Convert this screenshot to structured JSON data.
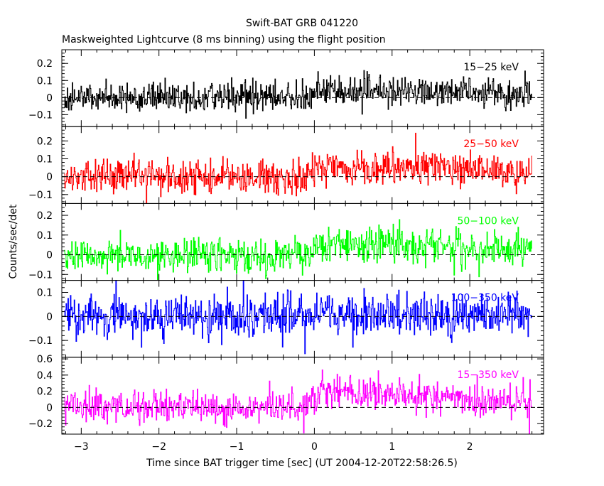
{
  "chart_data": {
    "type": "line",
    "title": "Swift-BAT GRB 041220",
    "subtitle": "Maskweighted Lightcurve (8 ms binning) using the flight position",
    "xlabel": "Time since BAT trigger time [sec] (UT 2004-12-20T22:58:26.5)",
    "ylabel": "Counts/sec/det",
    "xlim": [
      -3.25,
      2.95
    ],
    "x_ticks": [
      -3,
      -2,
      -1,
      0,
      1,
      2
    ],
    "x_tick_labels": [
      "−3",
      "−2",
      "−1",
      "0",
      "1",
      "2"
    ],
    "bin_width_sec": 0.008,
    "data_x_range": [
      -3.22,
      2.8
    ],
    "panels": [
      {
        "name": "15-25 keV",
        "label": "15−25 keV",
        "color": "#000000",
        "ylim": [
          -0.17,
          0.28
        ],
        "y_ticks": [
          -0.1,
          0,
          0.1,
          0.2
        ],
        "y_tick_labels": [
          "−0.1",
          "0",
          "0.1",
          "0.2"
        ],
        "baseline_level": 0.0,
        "burst_level": 0.05,
        "noise_sigma": 0.045
      },
      {
        "name": "25-50 keV",
        "label": "25−50 keV",
        "color": "#ff0000",
        "ylim": [
          -0.15,
          0.28
        ],
        "y_ticks": [
          -0.1,
          0,
          0.1,
          0.2
        ],
        "y_tick_labels": [
          "−0.1",
          "0",
          "0.1",
          "0.2"
        ],
        "baseline_level": 0.0,
        "burst_level": 0.07,
        "noise_sigma": 0.05
      },
      {
        "name": "50-100 keV",
        "label": "50−100 keV",
        "color": "#00ff00",
        "ylim": [
          -0.13,
          0.26
        ],
        "y_ticks": [
          -0.1,
          0,
          0.1,
          0.2
        ],
        "y_tick_labels": [
          "−0.1",
          "0",
          "0.1",
          "0.2"
        ],
        "baseline_level": 0.0,
        "burst_level": 0.06,
        "noise_sigma": 0.045
      },
      {
        "name": "100-350 keV",
        "label": "100−350 keV",
        "color": "#0000ff",
        "ylim": [
          -0.17,
          0.15
        ],
        "y_ticks": [
          -0.1,
          0,
          0.1
        ],
        "y_tick_labels": [
          "−0.1",
          "0",
          "0.1"
        ],
        "baseline_level": 0.0,
        "burst_level": 0.01,
        "noise_sigma": 0.045
      },
      {
        "name": "15-350 keV",
        "label": "15−350 keV",
        "color": "#ff00ff",
        "ylim": [
          -0.33,
          0.62
        ],
        "y_ticks": [
          -0.2,
          0,
          0.2,
          0.4,
          0.6
        ],
        "y_tick_labels": [
          "−0.2",
          "0",
          "0.2",
          "0.4",
          "0.6"
        ],
        "baseline_level": 0.0,
        "burst_level": 0.2,
        "noise_sigma": 0.1
      }
    ]
  }
}
